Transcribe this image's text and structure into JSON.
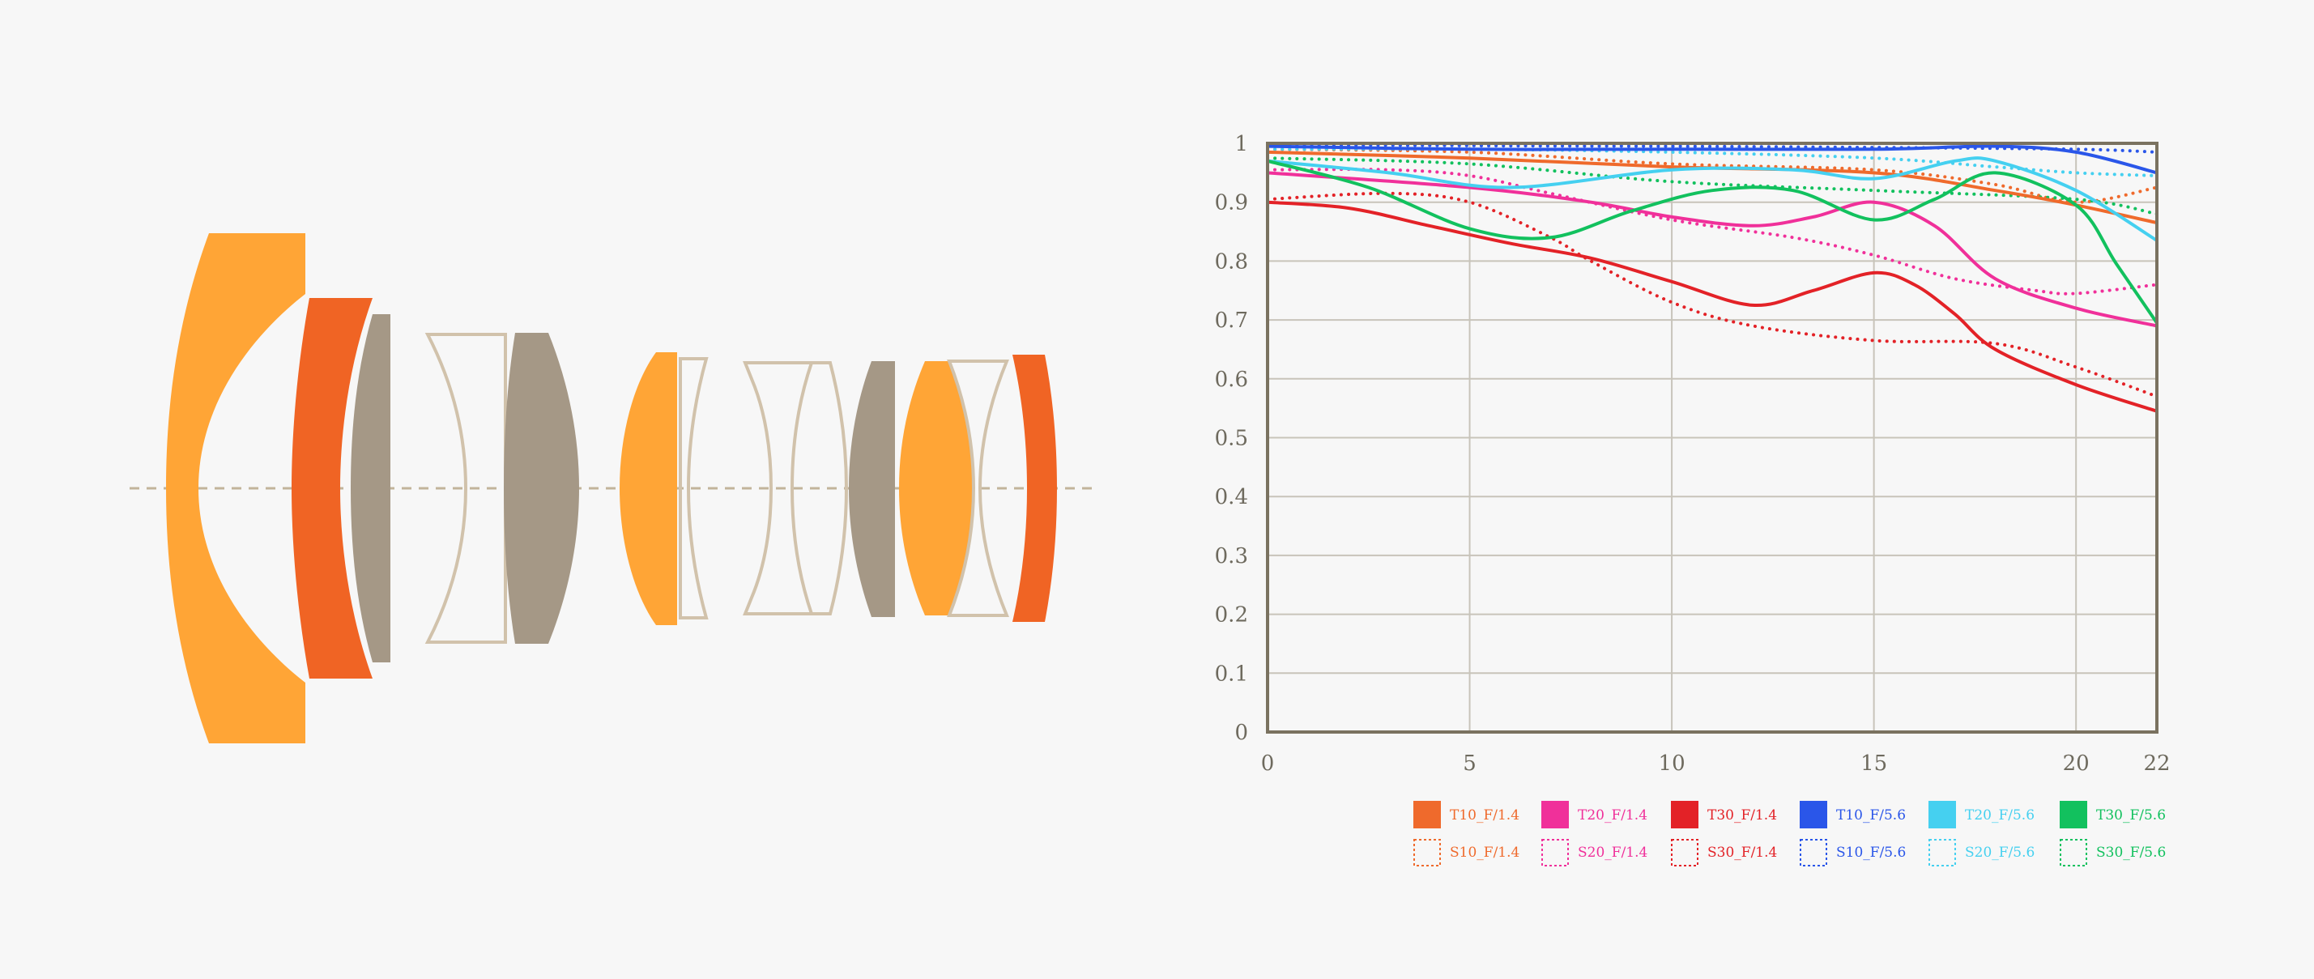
{
  "colors": {
    "background": "#f7f7f7",
    "axis": "#7a7260",
    "grid": "#c8c4ba",
    "optical_axis": "#c2b49b",
    "lens_orange": "#ffa536",
    "lens_red_orange": "#f06424",
    "lens_gray": "#a59886",
    "lens_outline": "#d1c2ab"
  },
  "lens_diagram": {
    "elements": [
      {
        "style": "filled",
        "color": "lens_orange"
      },
      {
        "style": "filled",
        "color": "lens_red_orange"
      },
      {
        "style": "filled",
        "color": "lens_gray"
      },
      {
        "style": "outline",
        "color": "lens_outline"
      },
      {
        "style": "filled",
        "color": "lens_gray"
      },
      {
        "style": "filled",
        "color": "lens_orange"
      },
      {
        "style": "outline",
        "color": "lens_outline"
      },
      {
        "style": "outline",
        "color": "lens_outline"
      },
      {
        "style": "outline",
        "color": "lens_outline"
      },
      {
        "style": "filled",
        "color": "lens_gray"
      },
      {
        "style": "filled",
        "color": "lens_orange"
      },
      {
        "style": "outline",
        "color": "lens_outline"
      },
      {
        "style": "filled",
        "color": "lens_red_orange"
      }
    ]
  },
  "chart_data": {
    "type": "line",
    "title": "",
    "xlabel": "",
    "ylabel": "",
    "xlim": [
      0,
      22
    ],
    "ylim": [
      0,
      1
    ],
    "xticks": [
      0,
      5,
      10,
      15,
      20,
      22
    ],
    "xtick_labels": [
      "0",
      "5",
      "10",
      "15",
      "20",
      "22"
    ],
    "yticks": [
      0,
      0.1,
      0.2,
      0.3,
      0.4,
      0.5,
      0.6,
      0.7,
      0.8,
      0.9,
      1
    ],
    "ytick_labels": [
      "0",
      "0.1",
      "0.2",
      "0.3",
      "0.4",
      "0.5",
      "0.6",
      "0.7",
      "0.8",
      "0.9",
      "1"
    ],
    "grid": true,
    "legend_position": "bottom",
    "series": [
      {
        "name": "T10_F/1.4",
        "color": "#ef6a2c",
        "dash": "solid",
        "x": [
          0,
          5,
          10,
          15,
          18,
          20,
          22
        ],
        "y": [
          0.985,
          0.975,
          0.96,
          0.95,
          0.92,
          0.895,
          0.865
        ]
      },
      {
        "name": "T20_F/1.4",
        "color": "#f0309a",
        "dash": "solid",
        "x": [
          0,
          5,
          8,
          10,
          12,
          13.5,
          15,
          16.5,
          18,
          20,
          22
        ],
        "y": [
          0.95,
          0.925,
          0.9,
          0.875,
          0.86,
          0.875,
          0.9,
          0.86,
          0.77,
          0.72,
          0.69
        ]
      },
      {
        "name": "T30_F/1.4",
        "color": "#e32227",
        "dash": "solid",
        "x": [
          0,
          2,
          4,
          6,
          8,
          10,
          12,
          13.5,
          15,
          16,
          17,
          18,
          20,
          22
        ],
        "y": [
          0.9,
          0.89,
          0.86,
          0.83,
          0.805,
          0.765,
          0.725,
          0.75,
          0.78,
          0.76,
          0.71,
          0.65,
          0.59,
          0.545
        ]
      },
      {
        "name": "T10_F/5.6",
        "color": "#2a56e9",
        "dash": "solid",
        "x": [
          0,
          5,
          10,
          15,
          18,
          20,
          22
        ],
        "y": [
          0.995,
          0.99,
          0.99,
          0.99,
          0.995,
          0.985,
          0.95
        ]
      },
      {
        "name": "T20_F/5.6",
        "color": "#45d0f0",
        "dash": "solid",
        "x": [
          0,
          3,
          6,
          10,
          13,
          15,
          17,
          18,
          20,
          22
        ],
        "y": [
          0.97,
          0.95,
          0.925,
          0.955,
          0.955,
          0.94,
          0.97,
          0.97,
          0.92,
          0.835
        ]
      },
      {
        "name": "T30_F/5.6",
        "color": "#12c15e",
        "dash": "solid",
        "x": [
          0,
          2.5,
          5,
          7,
          9,
          11,
          13,
          15,
          16.5,
          18,
          20,
          21,
          22
        ],
        "y": [
          0.97,
          0.925,
          0.855,
          0.84,
          0.885,
          0.92,
          0.92,
          0.87,
          0.905,
          0.95,
          0.895,
          0.795,
          0.695
        ]
      },
      {
        "name": "S10_F/1.4",
        "color": "#ef6a2c",
        "dash": "dotted",
        "x": [
          0,
          5,
          10,
          15,
          18,
          20,
          22
        ],
        "y": [
          0.99,
          0.985,
          0.965,
          0.955,
          0.93,
          0.9,
          0.925
        ]
      },
      {
        "name": "S20_F/1.4",
        "color": "#f0309a",
        "dash": "dotted",
        "x": [
          0,
          3,
          5,
          7,
          10,
          13,
          15,
          17,
          19,
          20,
          22
        ],
        "y": [
          0.955,
          0.955,
          0.945,
          0.915,
          0.87,
          0.84,
          0.81,
          0.77,
          0.75,
          0.745,
          0.76
        ]
      },
      {
        "name": "S30_F/1.4",
        "color": "#e32227",
        "dash": "dotted",
        "x": [
          0,
          3,
          5,
          7,
          8,
          10,
          12,
          15,
          18,
          20,
          22
        ],
        "y": [
          0.905,
          0.915,
          0.9,
          0.84,
          0.8,
          0.73,
          0.69,
          0.665,
          0.66,
          0.62,
          0.57
        ]
      },
      {
        "name": "S10_F/5.6",
        "color": "#2a56e9",
        "dash": "dotted",
        "x": [
          0,
          5,
          10,
          15,
          20,
          22
        ],
        "y": [
          0.998,
          0.996,
          0.995,
          0.993,
          0.99,
          0.985
        ]
      },
      {
        "name": "S20_F/5.6",
        "color": "#45d0f0",
        "dash": "dotted",
        "x": [
          0,
          5,
          10,
          15,
          18,
          20,
          22
        ],
        "y": [
          0.99,
          0.99,
          0.985,
          0.975,
          0.96,
          0.95,
          0.945
        ]
      },
      {
        "name": "S30_F/5.6",
        "color": "#12c15e",
        "dash": "dotted",
        "x": [
          0,
          5,
          10,
          15,
          20,
          22
        ],
        "y": [
          0.975,
          0.965,
          0.935,
          0.92,
          0.905,
          0.88
        ]
      }
    ]
  }
}
